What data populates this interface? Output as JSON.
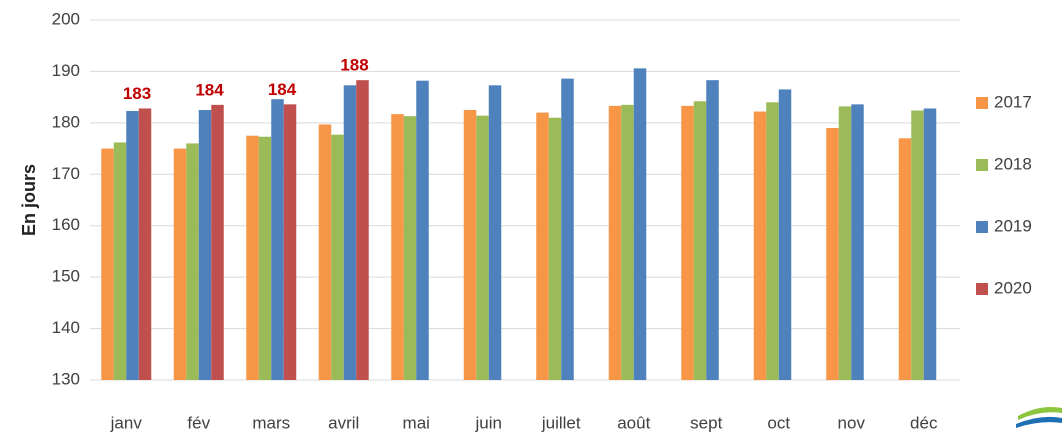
{
  "chart_data": {
    "type": "bar",
    "y_label": "En jours",
    "categories": [
      "janv",
      "fév",
      "mars",
      "avril",
      "mai",
      "juin",
      "juillet",
      "août",
      "sept",
      "oct",
      "nov",
      "déc"
    ],
    "series": [
      {
        "name": "2017",
        "color": "#f79646",
        "values": [
          175,
          175,
          177.5,
          179.7,
          181.7,
          182.5,
          182,
          183.3,
          183.3,
          182.2,
          179,
          177
        ]
      },
      {
        "name": "2018",
        "color": "#9bbb59",
        "values": [
          176.2,
          176,
          177.3,
          177.7,
          181.3,
          181.4,
          181,
          183.5,
          184.2,
          184,
          183.2,
          182.4
        ]
      },
      {
        "name": "2019",
        "color": "#4f81bd",
        "values": [
          182.3,
          182.5,
          184.6,
          187.3,
          188.2,
          187.3,
          188.6,
          190.6,
          188.3,
          186.5,
          183.6,
          182.8
        ]
      },
      {
        "name": "2020",
        "color": "#c0504d",
        "values": [
          182.8,
          183.5,
          183.6,
          188.3,
          null,
          null,
          null,
          null,
          null,
          null,
          null,
          null
        ],
        "value_labels": [
          "183",
          "184",
          "184",
          "188",
          null,
          null,
          null,
          null,
          null,
          null,
          null,
          null
        ],
        "label_color": "#c00000"
      }
    ],
    "ylim": [
      130,
      200
    ],
    "yticks": [
      130,
      140,
      150,
      160,
      170,
      180,
      190,
      200
    ],
    "grid": true,
    "legend": "right"
  }
}
